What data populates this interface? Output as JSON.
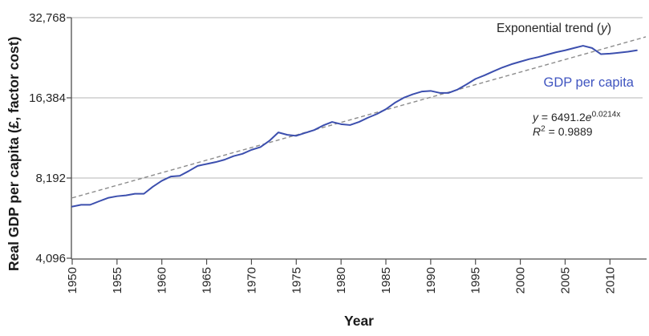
{
  "chart": {
    "y_axis_title": "Real GDP per capita (£, factor cost)",
    "x_axis_title": "Year"
  },
  "annotations": {
    "trend": {
      "pre": "Exponential trend (",
      "var": "y",
      "post": ")"
    },
    "gdp_label": "GDP per capita",
    "equation": {
      "var": "y",
      "eq": " = 6491.2",
      "base": "e",
      "exponent": "0.0214x"
    },
    "r_squared": {
      "var": "R",
      "sup": "2",
      "rest": " = 0.9889"
    }
  },
  "colors": {
    "gdp_line": "#3c4fae",
    "gdp_label_text": "#4055c0",
    "trend_line": "#8c8c8c",
    "gridline": "#b5b5b5",
    "axis_spine": "#4d4d4d",
    "tick_label": "#262626"
  },
  "chart_data": {
    "type": "line",
    "title": "",
    "xlabel": "Year",
    "ylabel": "Real GDP per capita (£, factor cost)",
    "y_scale": "log2",
    "ylim": [
      4096,
      32768
    ],
    "xlim": [
      1950,
      2014
    ],
    "grid": true,
    "legend_position": "inline-annotations",
    "y_ticks": [
      {
        "value": 32768,
        "label": "32,768"
      },
      {
        "value": 16384,
        "label": "16,384"
      },
      {
        "value": 8192,
        "label": "8,192"
      },
      {
        "value": 4096,
        "label": "4,096"
      }
    ],
    "x_ticks": [
      1950,
      1955,
      1960,
      1965,
      1970,
      1975,
      1980,
      1985,
      1990,
      1995,
      2000,
      2005,
      2010
    ],
    "series": [
      {
        "name": "GDP per capita",
        "style": "solid",
        "years": [
          1950,
          1951,
          1952,
          1953,
          1954,
          1955,
          1956,
          1957,
          1958,
          1959,
          1960,
          1961,
          1962,
          1963,
          1964,
          1965,
          1966,
          1967,
          1968,
          1969,
          1970,
          1971,
          1972,
          1973,
          1974,
          1975,
          1976,
          1977,
          1978,
          1979,
          1980,
          1981,
          1982,
          1983,
          1984,
          1985,
          1986,
          1987,
          1988,
          1989,
          1990,
          1991,
          1992,
          1993,
          1994,
          1995,
          1996,
          1997,
          1998,
          1999,
          2000,
          2001,
          2002,
          2003,
          2004,
          2005,
          2006,
          2007,
          2008,
          2009,
          2010,
          2011,
          2012,
          2013
        ],
        "values": [
          6400,
          6500,
          6500,
          6700,
          6900,
          7000,
          7050,
          7150,
          7150,
          7600,
          8000,
          8300,
          8350,
          8700,
          9100,
          9250,
          9400,
          9600,
          9900,
          10100,
          10450,
          10700,
          11300,
          12150,
          11900,
          11800,
          12100,
          12400,
          12900,
          13300,
          13050,
          12950,
          13300,
          13800,
          14250,
          14850,
          15700,
          16400,
          16900,
          17300,
          17400,
          17100,
          17100,
          17600,
          18400,
          19300,
          19900,
          20600,
          21300,
          21900,
          22400,
          22900,
          23300,
          23800,
          24300,
          24700,
          25200,
          25700,
          25200,
          23900,
          24000,
          24200,
          24400,
          24700
        ]
      },
      {
        "name": "Exponential trend (y)",
        "style": "dashed",
        "equation": "y = 6491.2e^(0.0214x)",
        "r_squared": 0.9889,
        "years": [
          1950,
          2014
        ],
        "values": [
          6900,
          27750
        ]
      }
    ]
  }
}
